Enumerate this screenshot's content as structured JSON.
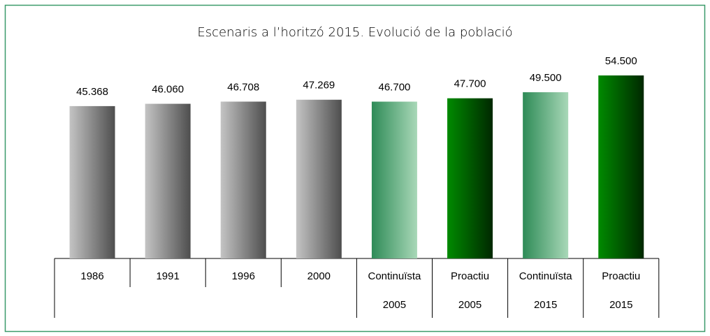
{
  "chart_data": {
    "type": "bar",
    "title": "Escenaris a l’horitzó 2015. Evolució de la població",
    "categories": [
      "1986",
      "1991",
      "1996",
      "2000",
      "Continuïsta",
      "Proactiu",
      "Continuïsta",
      "Proactiu"
    ],
    "subcategories": [
      null,
      null,
      null,
      null,
      "2005",
      "2005",
      "2015",
      "2015"
    ],
    "values": [
      45368,
      46060,
      46708,
      47269,
      46700,
      47700,
      49500,
      54500
    ],
    "value_labels": [
      "45.368",
      "46.060",
      "46.708",
      "47.269",
      "46.700",
      "47.700",
      "49.500",
      "54.500"
    ],
    "colors": [
      [
        "#c4c4c4",
        "#4e4e4e"
      ],
      [
        "#c4c4c4",
        "#4e4e4e"
      ],
      [
        "#c4c4c4",
        "#4e4e4e"
      ],
      [
        "#c4c4c4",
        "#4e4e4e"
      ],
      [
        "#2e8b57",
        "#a9d8b8"
      ],
      [
        "#008a00",
        "#002800"
      ],
      [
        "#2e8b57",
        "#a9d8b8"
      ],
      [
        "#008a00",
        "#002800"
      ]
    ]
  }
}
